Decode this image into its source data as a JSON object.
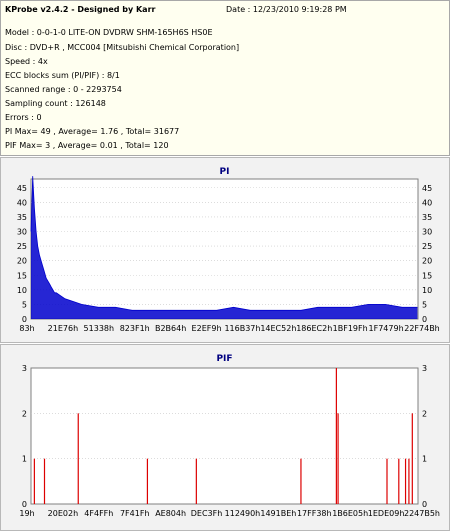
{
  "header": {
    "title": "KProbe v2.4.2 - Designed by Karr",
    "date": "Date : 12/23/2010 9:19:28 PM",
    "lines": [
      "Model : 0-0-1-0 LITE-ON DVDRW SHM-165H6S HS0E",
      "Disc : DVD+R , MCC004 [Mitsubishi Chemical Corporation]",
      "Speed : 4x",
      "ECC blocks sum (PI/PIF) : 8/1",
      "Scanned range : 0 - 2293754",
      "Sampling count : 126148",
      "Errors : 0",
      "PI Max= 49 , Average= 1.76 , Total= 31677",
      "PIF Max= 3 , Average= 0.01 , Total= 120"
    ]
  },
  "colors": {
    "pi_series": "#0000cc",
    "pif_series": "#dd0000",
    "panel_bg": "#f2f2f2",
    "title": "#000080"
  },
  "chart_data": [
    {
      "type": "bar",
      "title": "PI",
      "ylim": [
        0,
        48
      ],
      "yticks": [
        0,
        5,
        10,
        15,
        20,
        25,
        30,
        35,
        40,
        45
      ],
      "xlim": [
        0,
        2293754
      ],
      "grid": true,
      "xtick_labels": [
        "83h",
        "21E76h",
        "51338h",
        "823F1h",
        "B2B64h",
        "E2EF9h",
        "116B37h",
        "14EC52h",
        "186EC2h",
        "1BF19Fh",
        "1F7479h",
        "22F74Bh"
      ],
      "series": [
        {
          "x": [
            0,
            10000,
            20000,
            30000,
            40000,
            50000,
            60000,
            70000,
            80000,
            90000,
            100000,
            110000,
            120000,
            130000,
            140000,
            150000,
            175000,
            200000,
            250000,
            300000,
            400000,
            500000,
            600000,
            700000,
            800000,
            900000,
            1000000,
            1100000,
            1200000,
            1300000,
            1400000,
            1500000,
            1600000,
            1700000,
            1800000,
            1900000,
            2000000,
            2100000,
            2200000,
            2290000
          ],
          "values": [
            30,
            49,
            38,
            30,
            25,
            22,
            20,
            18,
            16,
            14,
            13,
            12,
            11,
            10,
            9,
            9,
            8,
            7,
            6,
            5,
            4,
            4,
            3,
            3,
            3,
            3,
            3,
            3,
            4,
            3,
            3,
            3,
            3,
            4,
            4,
            4,
            5,
            5,
            4,
            4
          ]
        }
      ]
    },
    {
      "type": "bar",
      "title": "PIF",
      "ylim": [
        0,
        3
      ],
      "yticks": [
        0,
        1,
        2,
        3
      ],
      "xlim": [
        0,
        2293754
      ],
      "grid": true,
      "xtick_labels": [
        "19h",
        "20E02h",
        "4F4FFh",
        "7F41Fh",
        "AE804h",
        "DEC3Fh",
        "112490h",
        "1491BEh",
        "17FF38h",
        "1B6E05h",
        "1EDE09h",
        "2247B5h"
      ],
      "series": [
        {
          "x": [
            20000,
            80000,
            280000,
            690000,
            980000,
            1600000,
            1810000,
            1820000,
            2110000,
            2180000,
            2220000,
            2240000,
            2260000
          ],
          "values": [
            1,
            1,
            2,
            1,
            1,
            1,
            3,
            2,
            1,
            1,
            1,
            1,
            2
          ]
        }
      ]
    }
  ]
}
